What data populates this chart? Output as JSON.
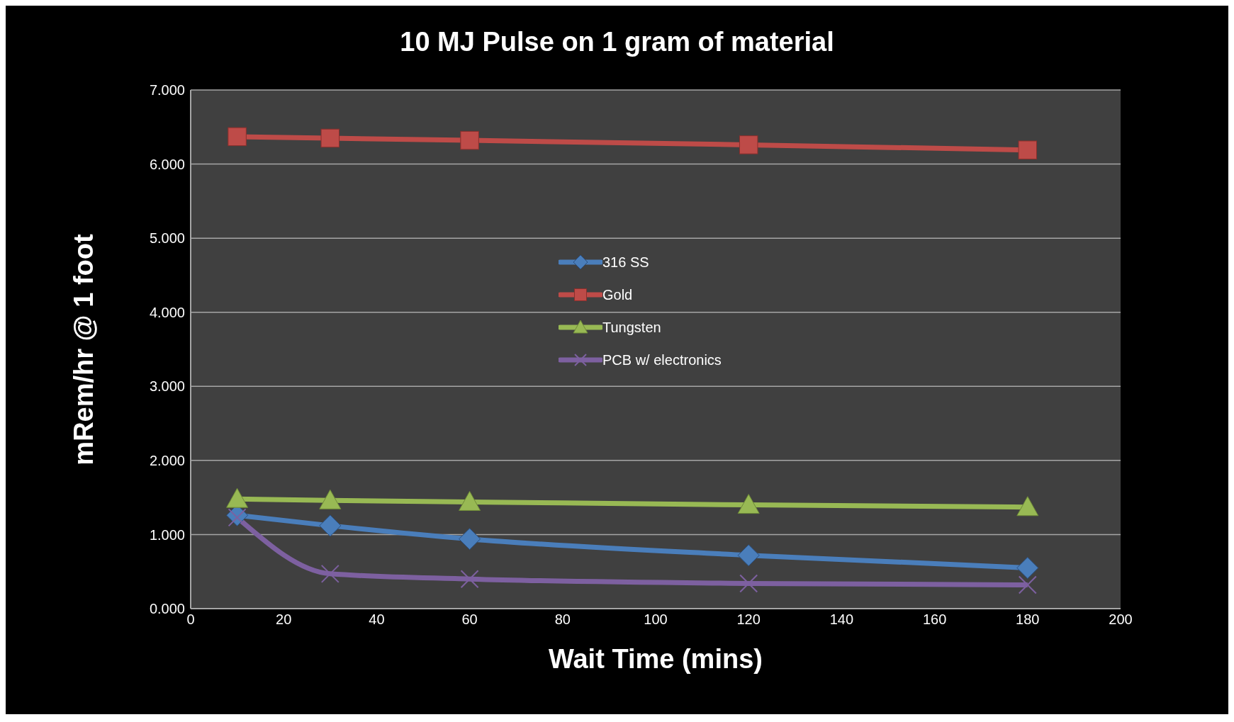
{
  "chart_data": {
    "type": "line",
    "title": "10 MJ Pulse on 1 gram of material",
    "xlabel": "Wait Time (mins)",
    "ylabel": "mRem/hr @ 1 foot",
    "x": [
      10,
      30,
      60,
      120,
      180
    ],
    "series": [
      {
        "name": "316 SS",
        "color": "#4a7ebb",
        "marker": "diamond",
        "values": [
          1.26,
          1.12,
          0.94,
          0.72,
          0.55
        ]
      },
      {
        "name": "Gold",
        "color": "#be4b48",
        "marker": "square",
        "values": [
          6.37,
          6.35,
          6.32,
          6.26,
          6.19
        ]
      },
      {
        "name": "Tungsten",
        "color": "#98b954",
        "marker": "triangle",
        "values": [
          1.48,
          1.46,
          1.44,
          1.4,
          1.37
        ]
      },
      {
        "name": "PCB w/ electronics",
        "color": "#7d60a0",
        "marker": "cross",
        "values": [
          1.23,
          0.47,
          0.4,
          0.34,
          0.32
        ]
      }
    ],
    "xlim": [
      0,
      200
    ],
    "xticks": [
      0,
      20,
      40,
      60,
      80,
      100,
      120,
      140,
      160,
      180,
      200
    ],
    "ylim": [
      0,
      7
    ],
    "yticks": [
      {
        "value": 0,
        "label": "0.000"
      },
      {
        "value": 1,
        "label": "1.000"
      },
      {
        "value": 2,
        "label": "2.000"
      },
      {
        "value": 3,
        "label": "3.000"
      },
      {
        "value": 4,
        "label": "4.000"
      },
      {
        "value": 5,
        "label": "5.000"
      },
      {
        "value": 6,
        "label": "6.000"
      },
      {
        "value": 7,
        "label": "7.000"
      }
    ],
    "grid": "y",
    "legend": "center",
    "line_style": "solid"
  }
}
